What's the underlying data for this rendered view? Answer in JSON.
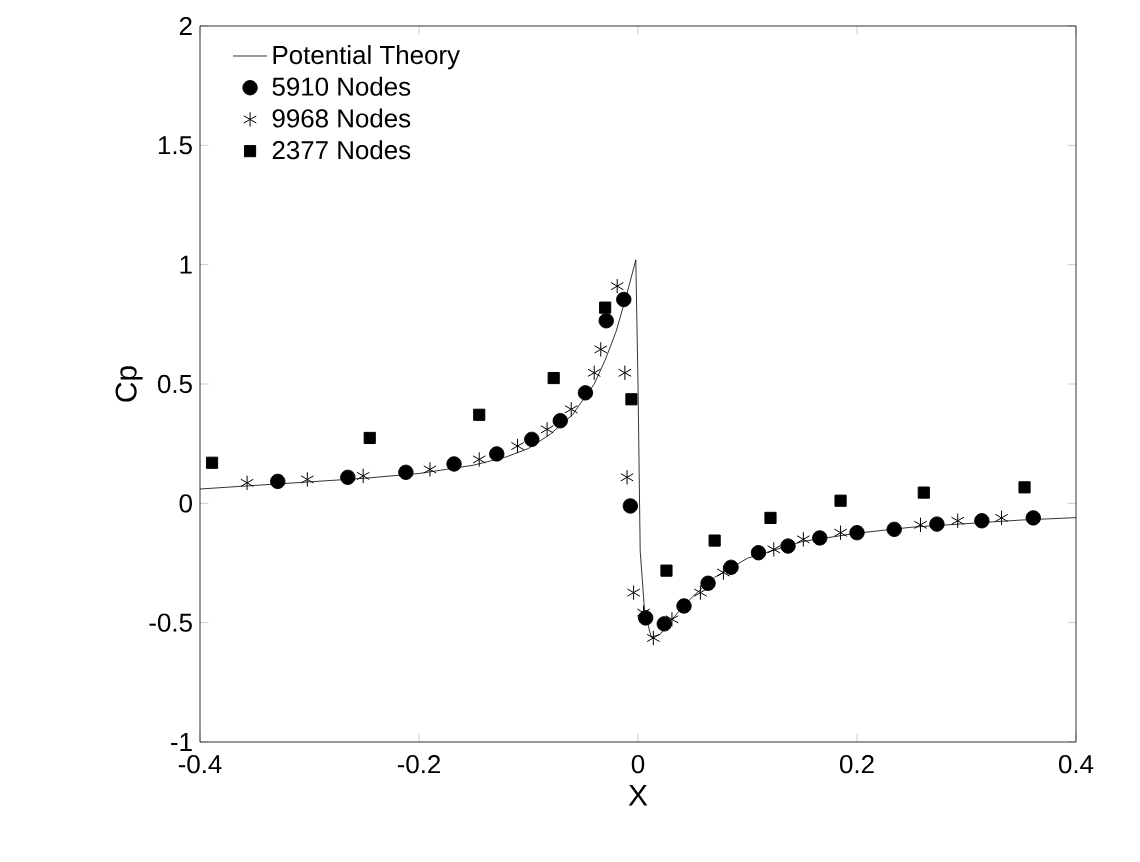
{
  "chart_data": {
    "type": "scatter",
    "xlabel": "X",
    "ylabel": "Cp",
    "xlim": [
      -0.4,
      0.4
    ],
    "ylim": [
      -1,
      2
    ],
    "xticks": [
      -0.4,
      -0.2,
      0,
      0.2,
      0.4
    ],
    "yticks": [
      -1,
      -0.5,
      0,
      0.5,
      1,
      1.5,
      2
    ],
    "legend": "top left",
    "grid": false,
    "series": [
      {
        "name": "Potential Theory",
        "type": "line",
        "marker": "none",
        "line_style": "solid",
        "color": "#000000",
        "x": [
          -0.4,
          -0.35,
          -0.3,
          -0.25,
          -0.2,
          -0.15,
          -0.12,
          -0.1,
          -0.08,
          -0.06,
          -0.04,
          -0.03,
          -0.02,
          -0.01,
          -0.002,
          0,
          0.002,
          0.006,
          0.012,
          0.02,
          0.03,
          0.05,
          0.07,
          0.1,
          0.15,
          0.2,
          0.25,
          0.3,
          0.35,
          0.4
        ],
        "values": [
          0.06,
          0.075,
          0.09,
          0.105,
          0.125,
          0.16,
          0.195,
          0.23,
          0.29,
          0.37,
          0.5,
          0.6,
          0.72,
          0.88,
          1.02,
          0.5,
          -0.2,
          -0.45,
          -0.56,
          -0.55,
          -0.49,
          -0.39,
          -0.31,
          -0.23,
          -0.16,
          -0.125,
          -0.1,
          -0.085,
          -0.07,
          -0.06
        ]
      },
      {
        "name": "5910 Nodes",
        "marker": "circle",
        "color": "#000000",
        "x": [
          -0.329,
          -0.265,
          -0.212,
          -0.168,
          -0.129,
          -0.097,
          -0.071,
          -0.048,
          -0.029,
          -0.013,
          -0.007,
          0.007,
          0.024,
          0.042,
          0.064,
          0.085,
          0.11,
          0.137,
          0.166,
          0.2,
          0.234,
          0.273,
          0.314,
          0.361
        ],
        "values": [
          0.092,
          0.109,
          0.13,
          0.165,
          0.207,
          0.268,
          0.346,
          0.463,
          0.765,
          0.854,
          -0.011,
          -0.48,
          -0.505,
          -0.43,
          -0.335,
          -0.268,
          -0.207,
          -0.179,
          -0.145,
          -0.123,
          -0.109,
          -0.087,
          -0.073,
          -0.061
        ]
      },
      {
        "name": "9968 Nodes",
        "marker": "cross",
        "color": "#000000",
        "x": [
          -0.357,
          -0.302,
          -0.251,
          -0.19,
          -0.145,
          -0.11,
          -0.083,
          -0.061,
          -0.04,
          -0.034,
          -0.019,
          -0.012,
          -0.01,
          -0.004,
          0.005,
          0.014,
          0.031,
          0.057,
          0.078,
          0.124,
          0.151,
          0.185,
          0.258,
          0.292,
          0.332
        ],
        "values": [
          0.086,
          0.1,
          0.115,
          0.142,
          0.184,
          0.24,
          0.31,
          0.394,
          0.547,
          0.645,
          0.91,
          0.547,
          0.109,
          -0.374,
          -0.458,
          -0.564,
          -0.486,
          -0.374,
          -0.29,
          -0.193,
          -0.151,
          -0.123,
          -0.09,
          -0.073,
          -0.061
        ]
      },
      {
        "name": "2377 Nodes",
        "marker": "square",
        "color": "#000000",
        "x": [
          -0.389,
          -0.245,
          -0.145,
          -0.077,
          -0.03,
          -0.006,
          0.026,
          0.07,
          0.121,
          0.185,
          0.261,
          0.353
        ],
        "values": [
          0.17,
          0.274,
          0.371,
          0.525,
          0.82,
          0.436,
          -0.282,
          -0.156,
          -0.061,
          0.011,
          0.045,
          0.067
        ]
      }
    ]
  }
}
